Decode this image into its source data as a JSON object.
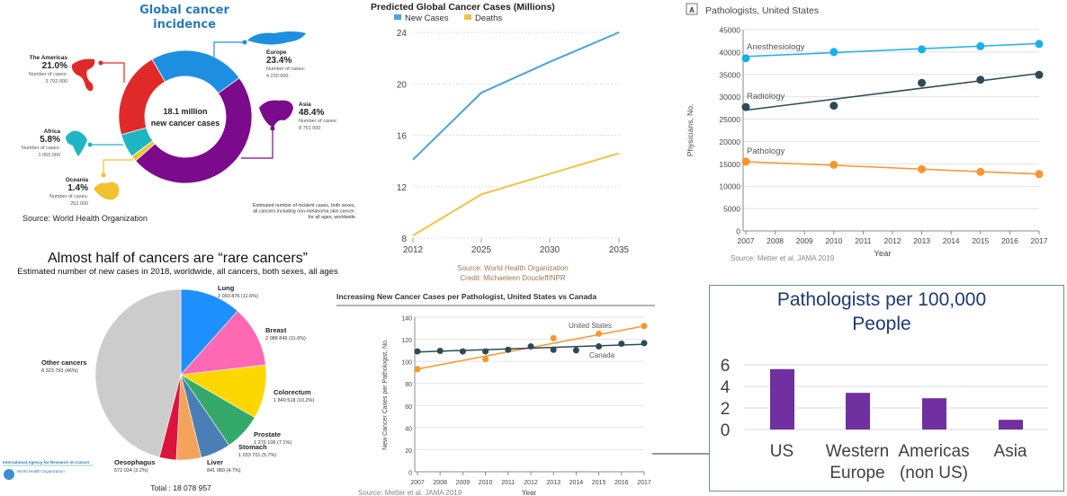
{
  "chart_data": [
    {
      "type": "pie",
      "variant": "donut",
      "title": "Global cancer incidence",
      "center_label": [
        "18.1 million",
        "new cancer cases"
      ],
      "cases_label": "Number of cases:",
      "slices": [
        {
          "label": "Europe",
          "percent": 23.4,
          "pct_text": "23.4%",
          "cases": "4 230 000",
          "color": "#1e8fe0"
        },
        {
          "label": "Asia",
          "percent": 48.4,
          "pct_text": "48.4%",
          "cases": "8 751 000",
          "color": "#7b0a8c"
        },
        {
          "label": "Oceania",
          "percent": 1.4,
          "pct_text": "1.4%",
          "cases": "252 000",
          "color": "#f2c12e"
        },
        {
          "label": "Africa",
          "percent": 5.8,
          "pct_text": "5.8%",
          "cases": "1 055 000",
          "color": "#1fb5c2"
        },
        {
          "label": "The Americas",
          "percent": 21.0,
          "pct_text": "21.0%",
          "cases": "3 792 000",
          "color": "#e02a2a"
        }
      ],
      "source": "Source: World Health Organization",
      "note": [
        "Estimated number of incident cases, both sexes,",
        "all cancers including non-melanoma skin cancer,",
        "for all ages, worldwide"
      ]
    },
    {
      "type": "line",
      "title": "Predicted Global Cancer Cases (Millions)",
      "categories": [
        "2012",
        "2025",
        "2030",
        "2035"
      ],
      "series": [
        {
          "name": "New Cases",
          "values": [
            14.1,
            19.3,
            21.7,
            24.0
          ],
          "color": "#4aa3d9"
        },
        {
          "name": "Deaths",
          "values": [
            8.2,
            11.4,
            13.0,
            14.6
          ],
          "color": "#f0c443"
        }
      ],
      "ylim": [
        8,
        24
      ],
      "yticks": [
        "8",
        "12",
        "16",
        "20",
        "24"
      ],
      "ytick_values": [
        8,
        12,
        16,
        20,
        24
      ],
      "grid": true,
      "legend": "top-left",
      "source": "Source: World Health Organization",
      "credit": "Credit: Michaeleen Doucleff/NPR"
    },
    {
      "type": "scatter",
      "panel_label": "A",
      "title": "Pathologists, United States",
      "xlabel": "Year",
      "ylabel": "Physicians, No.",
      "xticks": [
        "2007",
        "2008",
        "2009",
        "2010",
        "2011",
        "2012",
        "2013",
        "2014",
        "2015",
        "2016",
        "2017"
      ],
      "yticks": [
        "0",
        "5000",
        "10000",
        "15000",
        "20000",
        "25000",
        "30000",
        "35000",
        "40000",
        "45000"
      ],
      "ylim": [
        0,
        45000
      ],
      "series": [
        {
          "name": "Anesthesiology",
          "color": "#1ab0ea",
          "x": [
            2007,
            2010,
            2013,
            2015,
            2017
          ],
          "y": [
            38600,
            40000,
            40600,
            41300,
            41800
          ],
          "trend": [
            39000,
            41900
          ]
        },
        {
          "name": "Radiology",
          "color": "#2f4a55",
          "x": [
            2007,
            2010,
            2013,
            2015,
            2017
          ],
          "y": [
            27700,
            28000,
            33100,
            33800,
            34900
          ],
          "trend": [
            27000,
            35200
          ]
        },
        {
          "name": "Pathology",
          "color": "#f7962f",
          "x": [
            2007,
            2010,
            2013,
            2015,
            2017
          ],
          "y": [
            15500,
            14800,
            13800,
            13200,
            12700
          ],
          "trend": [
            15500,
            12700
          ]
        }
      ],
      "source": "Source: Metter et al, JAMA 2019"
    },
    {
      "type": "pie",
      "title": "Almost half of cancers are “rare cancers”",
      "subtitle": "Estimated number of new cases in 2018, worldwide, all cancers, both sexes, all ages",
      "slices": [
        {
          "label": "Lung",
          "value": 2093876,
          "text": "2 093 876 (11.6%)",
          "percent": 11.6,
          "color": "#1e90ff"
        },
        {
          "label": "Breast",
          "value": 2088849,
          "text": "2 088 849 (11.6%)",
          "percent": 11.6,
          "color": "#ff69b4"
        },
        {
          "label": "Colorectum",
          "value": 1849518,
          "text": "1 849 518 (10.2%)",
          "percent": 10.2,
          "color": "#ffd700"
        },
        {
          "label": "Prostate",
          "value": 1276106,
          "text": "1 276 106 (7.1%)",
          "percent": 7.1,
          "color": "#35a96a"
        },
        {
          "label": "Stomach",
          "value": 1033701,
          "text": "1 033 701 (5.7%)",
          "percent": 5.7,
          "color": "#4a7fb5"
        },
        {
          "label": "Liver",
          "value": 841080,
          "text": "841 080 (4.7%)",
          "percent": 4.7,
          "color": "#f4a45a"
        },
        {
          "label": "Oesophagus",
          "value": 572034,
          "text": "572 034 (3.2%)",
          "percent": 3.2,
          "color": "#dc143c"
        },
        {
          "label": "Other cancers",
          "value": 8323793,
          "text": "8 323 793 (46%)",
          "percent": 46,
          "color": "#cccccc"
        }
      ],
      "total": "Total : 18 078 957",
      "logos": [
        "International Agency for Research on Cancer",
        "World Health Organization"
      ]
    },
    {
      "type": "scatter",
      "title": "Increasing New Cancer Cases per Pathologist, United States vs Canada",
      "xlabel": "Year",
      "ylabel": "New Cancer Cases per Pathologist, No.",
      "xticks": [
        "2007",
        "2008",
        "2009",
        "2010",
        "2011",
        "2012",
        "2013",
        "2014",
        "2015",
        "2016",
        "2017"
      ],
      "yticks": [
        "0",
        "20",
        "40",
        "60",
        "80",
        "100",
        "120",
        "140"
      ],
      "ylim": [
        0,
        140
      ],
      "series": [
        {
          "name": "United States",
          "color": "#f7962f",
          "x": [
            2007,
            2010,
            2013,
            2015,
            2017
          ],
          "y": [
            93,
            102,
            121,
            125,
            132
          ],
          "trend": [
            93,
            132
          ]
        },
        {
          "name": "Canada",
          "color": "#2f4a55",
          "x": [
            2007,
            2008,
            2009,
            2010,
            2011,
            2012,
            2013,
            2014,
            2015,
            2016,
            2017
          ],
          "y": [
            109,
            109.5,
            109,
            109,
            110.5,
            113.5,
            110.5,
            110,
            113.5,
            116,
            116.5
          ],
          "trend": [
            108.5,
            115.5
          ]
        }
      ],
      "source": "Source: Metter et al. JAMA 2019"
    },
    {
      "type": "bar",
      "title": [
        "Pathologists per 100,000",
        "People"
      ],
      "categories": [
        [
          "US"
        ],
        [
          "Western",
          "Europe"
        ],
        [
          "Americas",
          "(non US)"
        ],
        [
          "Asia"
        ]
      ],
      "values": [
        5.6,
        3.4,
        2.9,
        0.9
      ],
      "yticks": [
        "0",
        "2",
        "4",
        "6"
      ],
      "ylim": [
        0,
        6
      ],
      "color": "#7030a0",
      "grid": true
    }
  ]
}
